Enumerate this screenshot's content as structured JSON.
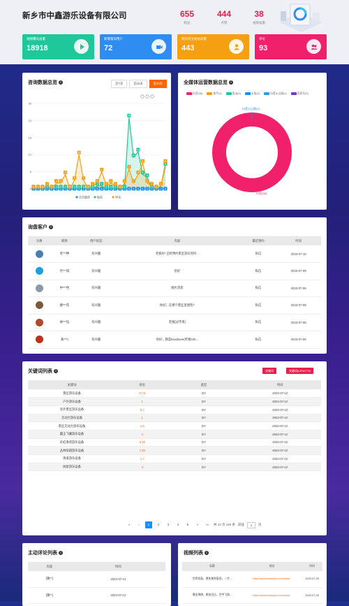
{
  "header": {
    "title": "新乡市中鑫游乐设备有限公司",
    "stats": [
      {
        "value": "655",
        "label": "粉丝"
      },
      {
        "value": "444",
        "label": "点赞"
      },
      {
        "value": "38",
        "label": "视频总量"
      }
    ]
  },
  "cards": [
    {
      "label": "视频曝光总量",
      "value": "18918",
      "color": "#1ec89a"
    },
    {
      "label": "新增意向用户",
      "value": "72",
      "color": "#2f8cf0"
    },
    {
      "label": "网页内主动访问量",
      "value": "443",
      "color": "#f5a012"
    },
    {
      "label": "评论",
      "value": "93",
      "color": "#f0206b"
    }
  ],
  "consult": {
    "title": "咨询数据总览",
    "tabs": [
      "近7天",
      "近15天",
      "近30天"
    ],
    "legend": [
      "主页留资",
      "私信",
      "评论"
    ]
  },
  "chart_data": {
    "type": "line",
    "title": "",
    "ylim": [
      0,
      30
    ],
    "yticks": [
      "0",
      "6",
      "12",
      "18",
      "24",
      "30"
    ],
    "series": [
      {
        "name": "主页留资",
        "color": "#1890ff",
        "values": [
          0,
          0,
          0,
          0,
          0,
          0,
          0,
          0,
          0,
          0,
          0,
          0,
          0,
          0,
          0,
          0,
          0,
          0,
          0,
          0,
          0,
          0,
          0,
          0,
          0,
          0,
          0,
          0,
          0,
          0
        ]
      },
      {
        "name": "私信",
        "color": "#1ec89a",
        "values": [
          0,
          0,
          0,
          0,
          0,
          0,
          0,
          0,
          0,
          0,
          0,
          0,
          0,
          0,
          1,
          1,
          0,
          0,
          0,
          0,
          0,
          25,
          11,
          13,
          5,
          4,
          0,
          0,
          1,
          8
        ]
      },
      {
        "name": "评论",
        "color": "#f5a012",
        "values": [
          0,
          0,
          0,
          1,
          0,
          2,
          2,
          5,
          0,
          3,
          12,
          3,
          0,
          1,
          2,
          6,
          1,
          2,
          1,
          0,
          2,
          7,
          2,
          5,
          9,
          2,
          1,
          0,
          1,
          9
        ]
      }
    ]
  },
  "media": {
    "title": "全媒体运营数据总览",
    "legend": [
      {
        "name": "抖音(38)",
        "color": "#f0206b"
      },
      {
        "name": "快手(0)",
        "color": "#f5a012"
      },
      {
        "name": "西瓜(0)",
        "color": "#1ec89a"
      },
      {
        "name": "头条(0)",
        "color": "#1890ff"
      },
      {
        "name": "抖音火山版(0)",
        "color": "#2fa0e8"
      },
      {
        "name": "百家号(0)",
        "color": "#6a3fd0"
      }
    ],
    "top_label": "抖音火山版(0)",
    "bottom_label": "抖音(38)"
  },
  "leads": {
    "title": "询盘客户",
    "headers": [
      "头像",
      "昵称",
      "用户状态",
      "内容",
      "最近预约",
      "时间"
    ],
    "rows": [
      {
        "name": "老***种",
        "status": "有兴趣",
        "content": "老板好! 已经预约景区游玩项目...",
        "type": "私信",
        "time": "2023-07-10",
        "av": "#4a7fb0"
      },
      {
        "name": "月***城",
        "status": "有兴趣",
        "content": "您好",
        "type": "私信",
        "time": "2023-07-09",
        "av": "#1aa0e0"
      },
      {
        "name": "中***色",
        "status": "有兴趣",
        "content": "图片消息",
        "type": "私信",
        "time": "2023-07-09",
        "av": "#8a9aa8"
      },
      {
        "name": "娜***花",
        "status": "有兴趣",
        "content": "你好，在哪个景区里建筑?",
        "type": "私信",
        "time": "2023-07-08",
        "av": "#7a5a3a"
      },
      {
        "name": "故***钰",
        "status": "有兴趣",
        "content": "老板[过不来]",
        "type": "私信",
        "time": "2023-07-08",
        "av": "#b04a2a"
      },
      {
        "name": "黄***)",
        "status": "有兴趣",
        "content": "你好，我是kaodiwee(哔嗦b2b...",
        "type": "私信",
        "time": "2023-07-06",
        "av": "#c03020"
      }
    ]
  },
  "keywords": {
    "title": "关键词列表",
    "buttons": [
      "关键词",
      "关键词(LENGTH)"
    ],
    "headers": [
      "关键词",
      "排名",
      "类型",
      "时间"
    ],
    "rows": [
      {
        "kw": "景区游乐设备",
        "rank": "4,7,8",
        "type": "DY",
        "time": "2023-07-12"
      },
      {
        "kw": "户外游乐设备",
        "rank": "1",
        "type": "DY",
        "time": "2023-07-12"
      },
      {
        "kw": "室外景区游乐设备",
        "rank": "5,7",
        "type": "DY",
        "time": "2023-07-12"
      },
      {
        "kw": "无动力游乐设备",
        "rank": "1",
        "type": "DY",
        "time": "2023-07-12"
      },
      {
        "kw": "景区无动力游乐设备",
        "rank": "1,6",
        "type": "DY",
        "time": "2023-07-12"
      },
      {
        "kw": "霸王飞翼游乐设备",
        "rank": "2",
        "type": "DY",
        "time": "2023-07-12"
      },
      {
        "kw": "彩虹滑道游乐设备",
        "rank": "9,10",
        "type": "DY",
        "time": "2023-07-12"
      },
      {
        "kw": "丛林穿越游乐设备",
        "rank": "7,10",
        "type": "DY",
        "time": "2023-07-12"
      },
      {
        "kw": "滑道游乐设备",
        "rank": "1,7",
        "type": "DY",
        "time": "2023-07-12"
      },
      {
        "kw": "树屋游乐设备",
        "rank": "3",
        "type": "DY",
        "time": "2023-07-12"
      }
    ],
    "pager": {
      "prev": "«",
      "pages": [
        "1",
        "2",
        "3",
        "4",
        "5"
      ],
      "next": "»",
      "last": "»»",
      "total": "共 12 页 120 条",
      "goto": "前往",
      "page_value": "1",
      "page_unit": "页"
    }
  },
  "comments": {
    "title": "主动评论列表",
    "headers": [
      "内容",
      "时间"
    ],
    "rows": [
      {
        "content": "[猜**]",
        "time": "2023-07-12"
      },
      {
        "content": "[猜**]",
        "time": "2023-07-12"
      }
    ]
  },
  "videos": {
    "title": "视频列表",
    "headers": [
      "标题",
      "地址",
      "时间"
    ],
    "rows": [
      {
        "title": "世界如画，景色美到窒息，一步...",
        "url": "https://www.iesdouyin.com/shar...",
        "time": "2023-07-09"
      },
      {
        "title": "蜀金锦绣，帆快无比，空中飞翔...",
        "url": "https://www.iesdouyin.com/shar...",
        "time": "2023-07-09"
      }
    ]
  }
}
